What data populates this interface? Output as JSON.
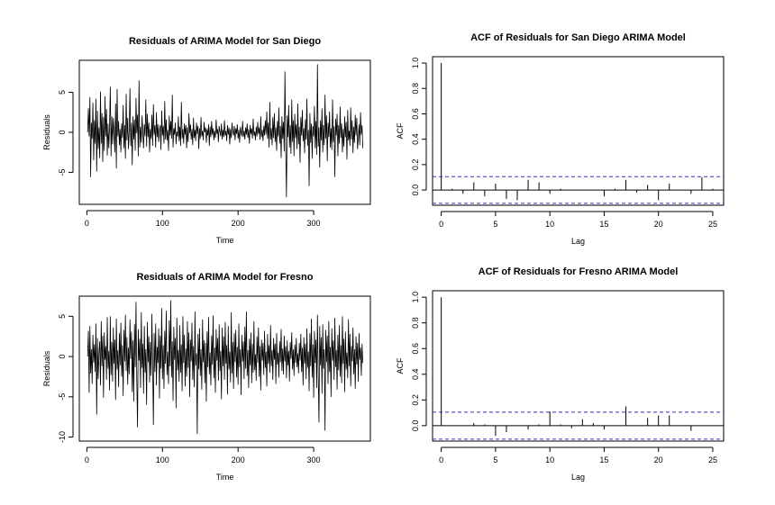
{
  "colors": {
    "line": "#000000",
    "ci": "#3333cc",
    "frame": "#000000"
  },
  "chart_data": [
    {
      "type": "line",
      "title": "Residuals of ARIMA Model for San Diego",
      "xlabel": "Time",
      "ylabel": "Residuals",
      "xlim": [
        -10,
        375
      ],
      "ylim": [
        -9,
        9
      ],
      "xticks": [
        0,
        100,
        200,
        300
      ],
      "yticks": [
        -5,
        0,
        5
      ],
      "n": 365,
      "series": [
        {
          "values": [
            0.0,
            3.0,
            -0.5,
            4.4,
            -5.6,
            1.2,
            -0.8,
            3.7,
            -3.5,
            1.5,
            -1.4,
            4.2,
            -4.9,
            2.7,
            -2.1,
            0.6,
            -3.2,
            5.1,
            -1.4,
            2.4,
            -3.7,
            1.9,
            -2.3,
            4.5,
            -0.5,
            2.9,
            -2.9,
            1.1,
            -2.0,
            0.8,
            5.7,
            -3.0,
            2.0,
            -1.5,
            1.8,
            0.2,
            -2.5,
            3.6,
            -4.5,
            5.4,
            -0.5,
            1.4,
            -1.6,
            0.4,
            -2.5,
            1.1,
            -0.7,
            3.4,
            -2.0,
            0.9,
            -3.3,
            4.8,
            -1.0,
            1.8,
            -2.1,
            0.0,
            5.5,
            -1.7,
            1.2,
            -4.1,
            2.0,
            -0.9,
            1.6,
            -2.3,
            4.3,
            -0.1,
            2.2,
            -3.0,
            6.5,
            -1.9,
            0.7,
            -1.3,
            2.1,
            0.1,
            -2.0,
            1.0,
            -0.5,
            4.1,
            -1.8,
            2.3,
            -0.6,
            1.2,
            -2.5,
            0.4,
            -0.8,
            2.2,
            -1.7,
            3.5,
            -0.3,
            0.9,
            -1.9,
            2.5,
            -0.6,
            1.0,
            -1.2,
            0.2,
            0.9,
            -2.2,
            2.7,
            -0.4,
            0.8,
            -1.4,
            3.9,
            -0.9,
            1.6,
            -1.0,
            0.3,
            -2.3,
            2.1,
            -0.4,
            1.4,
            -0.8,
            4.7,
            -1.9,
            0.5,
            -0.3,
            1.2,
            -1.5,
            0.1,
            -0.5,
            2.0,
            -1.1,
            0.7,
            -1.7,
            3.8,
            -0.8,
            0.4,
            -1.4,
            1.1,
            -0.3,
            0.9,
            -2.0,
            0.6,
            -1.2,
            2.4,
            -0.1,
            1.0,
            -0.9,
            0.4,
            -1.6,
            1.8,
            -0.7,
            0.3,
            -1.1,
            1.2,
            -0.2,
            0.8,
            -2.1,
            0.5,
            -0.8,
            1.9,
            -0.5,
            0.2,
            -1.0,
            1.3,
            0.0,
            0.6,
            -1.3,
            0.4,
            -0.4,
            1.0,
            -1.7,
            0.7,
            -0.6,
            1.4,
            -0.3,
            0.5,
            -1.0,
            0.2,
            -0.7,
            1.6,
            -0.2,
            0.4,
            -1.2,
            0.8,
            0.1,
            -0.5,
            1.1,
            -0.9,
            0.3,
            -0.6,
            1.5,
            -0.4,
            0.2,
            -1.1,
            0.9,
            -0.3,
            0.6,
            -1.5,
            0.4,
            -0.7,
            1.2,
            0.0,
            -0.4,
            0.8,
            -1.0,
            0.5,
            -0.2,
            1.0,
            -0.8,
            0.3,
            -1.3,
            0.7,
            0.0,
            -0.5,
            1.4,
            -0.6,
            0.2,
            -0.9,
            0.6,
            -0.3,
            1.1,
            -0.7,
            0.4,
            -1.4,
            0.9,
            -0.2,
            0.5,
            -0.8,
            1.7,
            -0.4,
            0.1,
            -1.0,
            0.7,
            -0.5,
            1.3,
            -0.2,
            0.6,
            -0.9,
            2.0,
            -0.6,
            0.3,
            -1.1,
            0.8,
            -0.4,
            1.5,
            -0.3,
            2.6,
            -0.8,
            1.2,
            -1.9,
            3.8,
            -0.9,
            0.5,
            -1.6,
            1.9,
            -0.7,
            2.4,
            -1.2,
            0.6,
            -2.3,
            1.4,
            -0.5,
            3.1,
            -1.4,
            0.8,
            -3.2,
            2.0,
            -0.8,
            1.3,
            -2.4,
            7.6,
            -1.6,
            -8.1,
            2.1,
            -0.6,
            3.4,
            -1.9,
            0.9,
            -2.7,
            4.1,
            -1.2,
            1.5,
            -3.0,
            2.3,
            -0.7,
            1.0,
            -2.1,
            3.6,
            -1.5,
            0.7,
            -3.8,
            1.9,
            -0.4,
            2.8,
            -1.1,
            0.5,
            -2.6,
            1.6,
            -0.9,
            4.2,
            -1.7,
            0.3,
            -6.7,
            2.4,
            -1.3,
            1.1,
            -3.3,
            0.8,
            -0.5,
            3.3,
            -2.0,
            1.4,
            -2.8,
            8.5,
            -1.8,
            0.6,
            -4.4,
            1.5,
            -1.0,
            3.0,
            -2.5,
            0.9,
            -1.6,
            4.7,
            -0.8,
            2.1,
            -3.6,
            1.2,
            -0.6,
            2.6,
            -1.9,
            0.5,
            -2.2,
            4.1,
            -1.2,
            0.8,
            -5.6,
            1.7,
            -0.4,
            2.3,
            -3.0,
            0.9,
            -1.4,
            3.2,
            -0.7,
            1.1,
            -2.5,
            0.4,
            -1.8,
            2.0,
            -0.6,
            1.3,
            -3.4,
            2.8,
            -1.0,
            0.2,
            -1.7,
            3.1,
            -0.9,
            1.5,
            -2.6,
            0.7,
            -1.3,
            2.2,
            -0.4,
            1.8,
            -2.1,
            -0.8,
            1.0,
            -1.6,
            2.5,
            -0.3,
            0.9,
            -2.0
          ]
        }
      ]
    },
    {
      "type": "bar",
      "title": "ACF of Residuals for San Diego ARIMA Model",
      "xlabel": "Lag",
      "ylabel": "ACF",
      "xlim": [
        -0.8,
        26
      ],
      "ylim": [
        -0.12,
        1.05
      ],
      "xticks": [
        0,
        5,
        10,
        15,
        20,
        25
      ],
      "yticks": [
        0.0,
        0.2,
        0.4,
        0.6,
        0.8,
        1.0
      ],
      "ci": 0.105,
      "lags": [
        0,
        1,
        2,
        3,
        4,
        5,
        6,
        7,
        8,
        9,
        10,
        11,
        12,
        13,
        14,
        15,
        16,
        17,
        18,
        19,
        20,
        21,
        22,
        23,
        24,
        25
      ],
      "values": [
        1.0,
        0.01,
        -0.03,
        0.06,
        -0.05,
        0.05,
        -0.07,
        -0.08,
        0.08,
        0.06,
        -0.03,
        0.01,
        0.0,
        0.0,
        0.0,
        -0.05,
        0.01,
        0.08,
        -0.02,
        0.04,
        -0.08,
        0.05,
        0.0,
        -0.03,
        0.1,
        0.01
      ]
    },
    {
      "type": "line",
      "title": "Residuals of ARIMA Model for Fresno",
      "xlabel": "Time",
      "ylabel": "Residuals",
      "xlim": [
        -10,
        375
      ],
      "ylim": [
        -10.5,
        7.5
      ],
      "xticks": [
        0,
        100,
        200,
        300
      ],
      "yticks": [
        -10,
        -5,
        0,
        5
      ],
      "n": 365,
      "series": [
        {
          "values": [
            0.0,
            3.2,
            -4.5,
            3.8,
            -2.1,
            0.9,
            -3.4,
            2.7,
            -0.8,
            1.5,
            -1.9,
            4.1,
            -7.2,
            2.3,
            -2.8,
            0.5,
            1.9,
            -3.6,
            4.4,
            -1.2,
            2.6,
            -5.1,
            3.0,
            -0.4,
            1.3,
            -2.9,
            4.9,
            -1.5,
            0.7,
            -4.2,
            5.0,
            -2.3,
            1.8,
            -3.1,
            3.6,
            -0.9,
            2.1,
            -5.4,
            4.7,
            -1.6,
            0.8,
            -3.8,
            2.9,
            -1.1,
            4.2,
            -2.5,
            1.4,
            -4.9,
            3.3,
            -0.6,
            5.2,
            -1.8,
            2.4,
            -3.5,
            1.1,
            -2.2,
            4.6,
            -0.3,
            3.1,
            -4.4,
            2.0,
            -5.6,
            4.0,
            -1.3,
            6.8,
            -2.7,
            -8.8,
            3.4,
            -0.5,
            2.2,
            -3.9,
            5.5,
            -1.4,
            1.6,
            -4.6,
            3.8,
            -2.0,
            0.9,
            -6.0,
            4.3,
            -0.7,
            2.5,
            -3.2,
            1.8,
            -2.4,
            5.3,
            -1.0,
            -8.5,
            2.9,
            -1.9,
            4.1,
            -3.6,
            1.2,
            -0.8,
            3.5,
            -5.2,
            2.6,
            -1.5,
            6.0,
            -2.8,
            1.4,
            -4.0,
            3.2,
            -0.9,
            5.7,
            -2.3,
            0.6,
            -3.4,
            4.5,
            -1.2,
            7.0,
            -2.6,
            1.9,
            -5.5,
            3.7,
            -0.4,
            2.3,
            -6.4,
            4.8,
            -1.7,
            0.8,
            -3.1,
            3.9,
            -2.0,
            1.5,
            -4.3,
            5.0,
            -0.8,
            2.7,
            -3.7,
            1.0,
            -2.5,
            4.4,
            -1.4,
            3.0,
            -5.0,
            2.1,
            -0.6,
            4.2,
            -2.9,
            1.3,
            -3.8,
            5.6,
            -1.1,
            0.4,
            -9.6,
            2.8,
            -1.6,
            3.5,
            -2.4,
            0.9,
            -4.1,
            4.6,
            -0.7,
            2.0,
            -3.3,
            1.7,
            -5.6,
            3.1,
            -1.3,
            4.9,
            -2.2,
            0.5,
            -3.6,
            2.6,
            -1.0,
            5.1,
            -2.7,
            1.1,
            -4.5,
            3.4,
            -0.5,
            2.3,
            -3.0,
            4.0,
            -1.8,
            0.7,
            -5.3,
            3.6,
            -1.2,
            2.5,
            -2.9,
            4.3,
            -0.9,
            1.4,
            -4.7,
            3.8,
            -1.6,
            0.6,
            -3.2,
            5.5,
            -2.1,
            1.8,
            -4.0,
            2.9,
            -0.7,
            3.3,
            -2.6,
            1.2,
            -3.5,
            4.1,
            -1.3,
            0.9,
            -4.8,
            2.7,
            -0.6,
            1.9,
            -2.8,
            3.7,
            -1.5,
            5.6,
            -2.4,
            0.8,
            -3.9,
            2.2,
            -1.1,
            3.0,
            -3.3,
            1.6,
            -2.0,
            4.4,
            -1.7,
            0.3,
            -3.0,
            2.5,
            -0.8,
            3.6,
            -2.5,
            1.3,
            -4.2,
            2.1,
            -0.5,
            1.7,
            -2.3,
            3.2,
            -1.4,
            0.6,
            -3.7,
            2.8,
            -0.9,
            1.4,
            -2.0,
            3.9,
            -1.2,
            0.8,
            -2.9,
            2.3,
            -0.4,
            1.6,
            -3.4,
            2.9,
            -1.0,
            0.5,
            -2.6,
            1.9,
            -0.7,
            3.4,
            -1.8,
            1.0,
            -2.2,
            2.6,
            -0.6,
            1.3,
            -2.7,
            2.0,
            -1.1,
            0.7,
            -3.1,
            1.8,
            -0.3,
            3.0,
            -1.6,
            0.9,
            -2.4,
            1.5,
            -0.8,
            2.3,
            -1.3,
            0.4,
            -2.1,
            1.7,
            -0.5,
            2.8,
            -1.9,
            1.1,
            -3.6,
            2.4,
            -0.9,
            1.6,
            -2.8,
            3.5,
            -1.4,
            0.6,
            -4.3,
            2.9,
            -1.2,
            4.7,
            -2.6,
            1.5,
            -5.1,
            3.2,
            -0.8,
            2.1,
            -3.9,
            5.2,
            -2.0,
            -8.2,
            3.8,
            -1.1,
            2.4,
            -4.6,
            4.0,
            -1.5,
            0.9,
            -9.2,
            3.3,
            -0.7,
            2.6,
            -3.4,
            4.4,
            -1.9,
            1.2,
            -5.0,
            3.5,
            -0.5,
            2.0,
            -2.9,
            4.8,
            -1.3,
            0.8,
            -4.1,
            2.7,
            -1.7,
            3.9,
            -2.5,
            1.4,
            -3.3,
            5.0,
            -0.9,
            2.2,
            -4.4,
            3.1,
            -1.6,
            0.5,
            -2.7,
            4.6,
            -1.2,
            2.8,
            -3.7,
            1.3,
            -0.6,
            3.6,
            -2.2,
            0.9,
            -4.0,
            2.5,
            -1.0,
            1.7,
            -3.1,
            2.9,
            -0.4,
            1.1,
            -2.4,
            1.6,
            -0.8
          ]
        }
      ]
    },
    {
      "type": "bar",
      "title": "ACF of Residuals for Fresno ARIMA Model",
      "xlabel": "Lag",
      "ylabel": "ACF",
      "xlim": [
        -0.8,
        26
      ],
      "ylim": [
        -0.12,
        1.05
      ],
      "xticks": [
        0,
        5,
        10,
        15,
        20,
        25
      ],
      "yticks": [
        0.0,
        0.2,
        0.4,
        0.6,
        0.8,
        1.0
      ],
      "ci": 0.105,
      "lags": [
        0,
        1,
        2,
        3,
        4,
        5,
        6,
        7,
        8,
        9,
        10,
        11,
        12,
        13,
        14,
        15,
        16,
        17,
        18,
        19,
        20,
        21,
        22,
        23,
        24,
        25
      ],
      "values": [
        1.0,
        0.0,
        0.0,
        0.02,
        0.01,
        -0.08,
        -0.05,
        0.0,
        -0.03,
        0.01,
        0.11,
        0.01,
        -0.02,
        0.05,
        0.02,
        -0.03,
        0.0,
        0.15,
        0.0,
        0.06,
        0.08,
        0.08,
        0.0,
        -0.04,
        0.0,
        0.0
      ]
    }
  ]
}
